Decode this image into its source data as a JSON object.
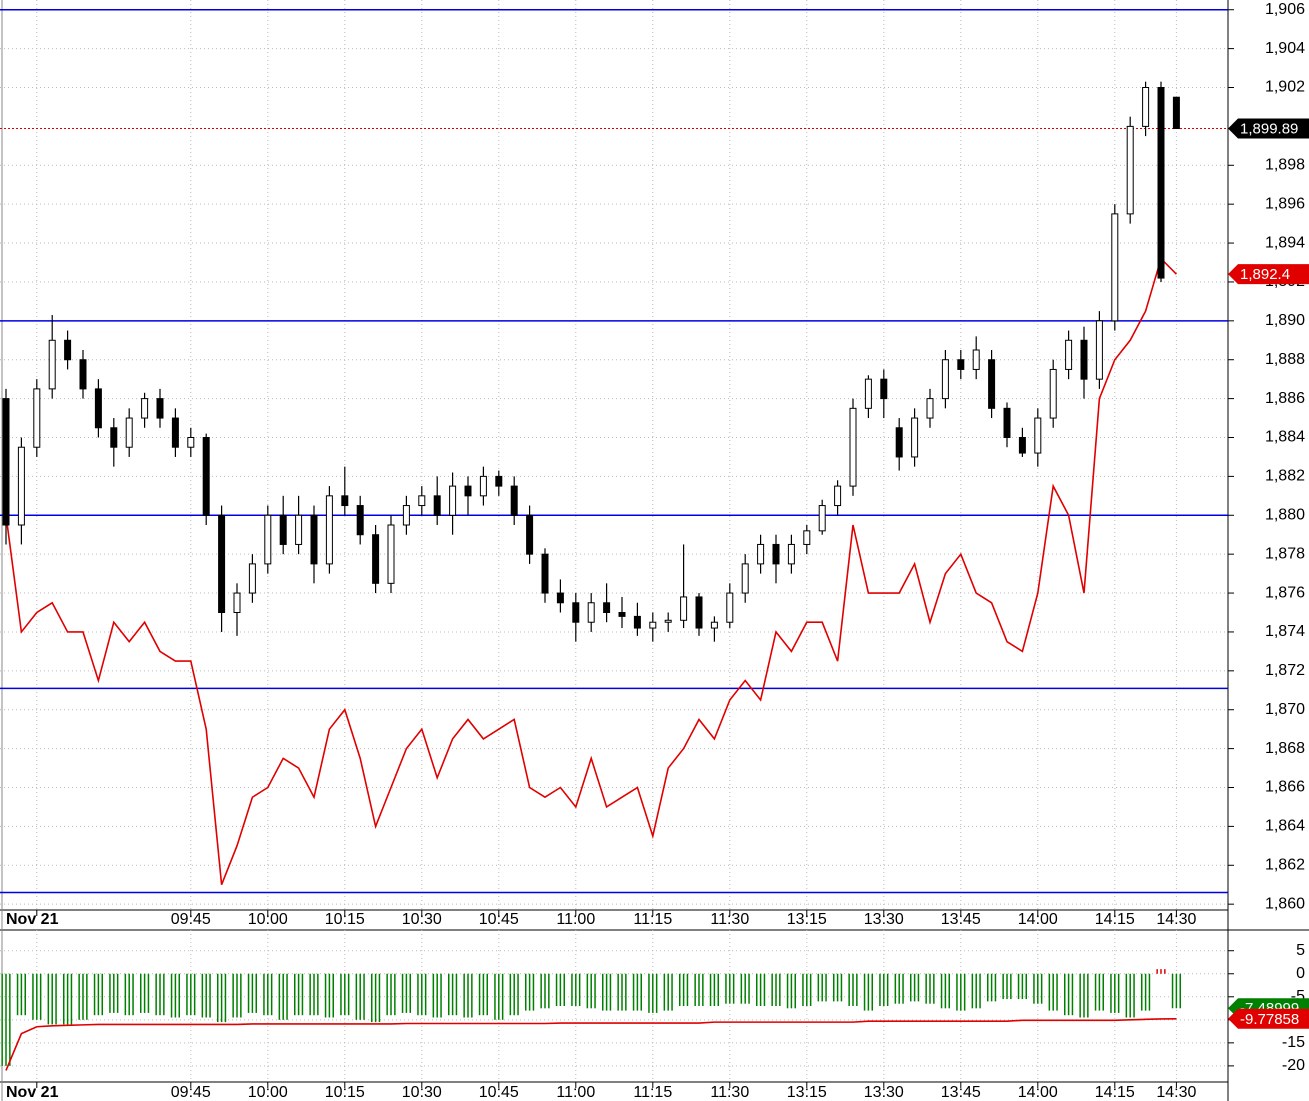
{
  "chart_data": [
    {
      "type": "candlestick",
      "categories": [
        null,
        null,
        "Nov 21",
        null,
        null,
        null,
        null,
        null,
        null,
        null,
        null,
        null,
        "09:45",
        null,
        null,
        null,
        null,
        "10:00",
        null,
        null,
        null,
        null,
        "10:15",
        null,
        null,
        null,
        null,
        "10:30",
        null,
        null,
        null,
        null,
        "10:45",
        null,
        null,
        null,
        null,
        "11:00",
        null,
        null,
        null,
        null,
        "11:15",
        null,
        null,
        null,
        null,
        "11:30",
        null,
        null,
        null,
        null,
        "13:15",
        null,
        null,
        null,
        null,
        "13:30",
        null,
        null,
        null,
        null,
        "13:45",
        null,
        null,
        null,
        null,
        "14:00",
        null,
        null,
        null,
        null,
        "14:15",
        null,
        null,
        null,
        "14:30"
      ],
      "open": [
        1886,
        1879.5,
        1883.5,
        1886.5,
        1889,
        1888,
        1886.5,
        1884.5,
        1883.5,
        1885,
        1886,
        1885,
        1883.5,
        1884,
        1880,
        1875,
        1876,
        1877.5,
        1880,
        1878.5,
        1880,
        1877.5,
        1881,
        1880.5,
        1879,
        1876.5,
        1879.5,
        1880.5,
        1881,
        1880,
        1881.5,
        1881,
        1882,
        1881.5,
        1880,
        1878,
        1876,
        1875.5,
        1874.5,
        1875.5,
        1875,
        1874.8,
        1874.2,
        1874.5,
        1874.6,
        1875.8,
        1874.2,
        1874.5,
        1876,
        1877.5,
        1878.5,
        1877.5,
        1878.5,
        1879.2,
        1880.5,
        1881.5,
        1885.5,
        1887,
        1884.5,
        1883,
        1885,
        1886,
        1888,
        1887.5,
        1888,
        1885.5,
        1884,
        1883.2,
        1885,
        1887.5,
        1889,
        1887,
        1890,
        1895.5,
        1900,
        1902,
        1901.5
      ],
      "high": [
        1886.5,
        1884,
        1887,
        1890.3,
        1889.5,
        1888.5,
        1887,
        1885,
        1885.5,
        1886.3,
        1886.5,
        1885.5,
        1884.5,
        1884.2,
        1880.5,
        1876.5,
        1878,
        1880.5,
        1881,
        1881,
        1880.5,
        1881.5,
        1882.5,
        1881,
        1879.5,
        1880,
        1881,
        1881.5,
        1882,
        1882.2,
        1882,
        1882.5,
        1882.3,
        1882,
        1880.5,
        1878.3,
        1876.7,
        1876,
        1876,
        1876.5,
        1875.8,
        1875.5,
        1875,
        1875,
        1878.5,
        1876,
        1874.8,
        1876.5,
        1878,
        1879,
        1879,
        1879,
        1879.5,
        1880.8,
        1881.8,
        1886,
        1887.2,
        1887.5,
        1885,
        1885.5,
        1886.5,
        1888.5,
        1888.5,
        1889.2,
        1888.5,
        1885.8,
        1884.5,
        1885.5,
        1888,
        1889.5,
        1889.7,
        1890.5,
        1896,
        1900.5,
        1902.3,
        1902.3,
        1901.5
      ],
      "low": [
        1878.5,
        1878.5,
        1883,
        1886,
        1887.5,
        1886,
        1884,
        1882.5,
        1883,
        1884.5,
        1884.5,
        1883,
        1883,
        1879.5,
        1874,
        1873.8,
        1875.5,
        1877,
        1878,
        1878,
        1876.5,
        1877,
        1880,
        1878.5,
        1876,
        1876,
        1879,
        1880,
        1879.5,
        1879,
        1880,
        1880.5,
        1881,
        1879.5,
        1877.5,
        1875.5,
        1875,
        1873.5,
        1874,
        1874.5,
        1874.2,
        1873.8,
        1873.5,
        1874,
        1874.2,
        1873.8,
        1873.5,
        1874.2,
        1875.5,
        1877,
        1876.5,
        1877,
        1878,
        1879,
        1880,
        1881,
        1885,
        1885,
        1882.3,
        1882.5,
        1884.5,
        1885.5,
        1887,
        1887,
        1885,
        1883.5,
        1883,
        1882.5,
        1884.5,
        1887,
        1886,
        1886.5,
        1889.5,
        1895,
        1899.5,
        1892,
        1899.89
      ],
      "close": [
        1879.5,
        1883.5,
        1886.5,
        1889,
        1888,
        1886.5,
        1884.5,
        1883.5,
        1885,
        1886,
        1885,
        1883.5,
        1884,
        1880,
        1875,
        1876,
        1877.5,
        1880,
        1878.5,
        1880,
        1877.5,
        1881,
        1880.5,
        1879,
        1876.5,
        1879.5,
        1880.5,
        1881,
        1880,
        1881.5,
        1881,
        1882,
        1881.5,
        1880,
        1878,
        1876,
        1875.5,
        1874.5,
        1875.5,
        1875,
        1874.8,
        1874.2,
        1874.5,
        1874.6,
        1875.8,
        1874.2,
        1874.5,
        1876,
        1877.5,
        1878.5,
        1877.5,
        1878.5,
        1879.2,
        1880.5,
        1881.5,
        1885.5,
        1887,
        1886,
        1883,
        1885,
        1886,
        1888,
        1887.5,
        1888.5,
        1885.5,
        1884,
        1883.2,
        1885,
        1887.5,
        1889,
        1887,
        1890,
        1895.5,
        1900,
        1902,
        1892.2,
        1899.89
      ],
      "line": {
        "color": "#e00000",
        "values": [
          1880,
          1874,
          1875,
          1875.5,
          1874,
          1874,
          1871.5,
          1874.5,
          1873.5,
          1874.5,
          1873,
          1872.5,
          1872.5,
          1869,
          1861,
          1863,
          1865.5,
          1866,
          1867.5,
          1867,
          1865.5,
          1869,
          1870,
          1867.5,
          1864,
          1866,
          1868,
          1869,
          1866.5,
          1868.5,
          1869.5,
          1868.5,
          1869,
          1869.5,
          1866,
          1865.5,
          1866,
          1865,
          1867.5,
          1865,
          1865.5,
          1866,
          1863.5,
          1867,
          1868,
          1869.5,
          1868.5,
          1870.5,
          1871.5,
          1870.5,
          1874,
          1873,
          1874.5,
          1874.5,
          1872.5,
          1879.5,
          1876,
          1876,
          1876,
          1877.5,
          1874.5,
          1877,
          1878,
          1876,
          1875.5,
          1873.5,
          1873,
          1876,
          1881.5,
          1880,
          1876,
          1886,
          1888,
          1889,
          1890.5,
          1893.2,
          1892.4
        ]
      },
      "line_tag": {
        "value": 1892.4,
        "label": "1,892.4"
      },
      "price_tag": {
        "value": 1899.89,
        "label": "1,899.89"
      },
      "levels": [
        1906,
        1890,
        1880,
        1871.1,
        1860.6
      ],
      "level_color": "#0000e0",
      "ylim": [
        1859.7,
        1906.5
      ],
      "yticks": [
        {
          "value": 1860,
          "label": "1,860"
        },
        {
          "value": 1862,
          "label": "1,862"
        },
        {
          "value": 1864,
          "label": "1,864"
        },
        {
          "value": 1866,
          "label": "1,866"
        },
        {
          "value": 1868,
          "label": "1,868"
        },
        {
          "value": 1870,
          "label": "1,870"
        },
        {
          "value": 1872,
          "label": "1,872"
        },
        {
          "value": 1874,
          "label": "1,874"
        },
        {
          "value": 1876,
          "label": "1,876"
        },
        {
          "value": 1878,
          "label": "1,878"
        },
        {
          "value": 1880,
          "label": "1,880"
        },
        {
          "value": 1882,
          "label": "1,882"
        },
        {
          "value": 1884,
          "label": "1,884"
        },
        {
          "value": 1886,
          "label": "1,886"
        },
        {
          "value": 1888,
          "label": "1,888"
        },
        {
          "value": 1890,
          "label": "1,890"
        },
        {
          "value": 1892,
          "label": "1,892"
        },
        {
          "value": 1894,
          "label": "1,894"
        },
        {
          "value": 1896,
          "label": "1,896"
        },
        {
          "value": 1898,
          "label": "1,898"
        },
        {
          "value": 1902,
          "label": "1,902"
        },
        {
          "value": 1904,
          "label": "1,904"
        },
        {
          "value": 1906,
          "label": "1,906"
        }
      ],
      "grid": true
    },
    {
      "type": "histogram-oscillator",
      "categories": [
        null,
        null,
        "Nov 21",
        null,
        null,
        null,
        null,
        null,
        null,
        null,
        null,
        null,
        "09:45",
        null,
        null,
        null,
        null,
        "10:00",
        null,
        null,
        null,
        null,
        "10:15",
        null,
        null,
        null,
        null,
        "10:30",
        null,
        null,
        null,
        null,
        "10:45",
        null,
        null,
        null,
        null,
        "11:00",
        null,
        null,
        null,
        null,
        "11:15",
        null,
        null,
        null,
        null,
        "11:30",
        null,
        null,
        null,
        null,
        "13:15",
        null,
        null,
        null,
        null,
        "13:30",
        null,
        null,
        null,
        null,
        "13:45",
        null,
        null,
        null,
        null,
        "14:00",
        null,
        null,
        null,
        null,
        "14:15",
        null,
        null,
        null,
        "14:30"
      ],
      "values": [
        -20,
        -9,
        -10,
        -11,
        -11,
        -10,
        -9,
        -8.5,
        -9,
        -8.5,
        -9,
        -9.5,
        -9,
        -9.5,
        -10.5,
        -9.5,
        -8.5,
        -9,
        -10,
        -9,
        -9,
        -9.5,
        -9,
        -10,
        -10.5,
        -9,
        -8.5,
        -9,
        -9.5,
        -9,
        -9.5,
        -9,
        -10,
        -9,
        -8,
        -7.5,
        -7,
        -7,
        -7.5,
        -8,
        -8,
        -8,
        -8.5,
        -8,
        -7,
        -7,
        -7,
        -6.5,
        -6.5,
        -7,
        -7,
        -7.5,
        -7,
        -6,
        -6,
        -7,
        -8,
        -7,
        -6.5,
        -6,
        -6.5,
        -7.5,
        -8,
        -7.5,
        -6,
        -5.5,
        -5.5,
        -6.5,
        -8,
        -9,
        -9.5,
        -8,
        -8.5,
        -9.5,
        -8,
        1,
        -7.48999
      ],
      "up_color": "#e00000",
      "down_color": "#008000",
      "signal": {
        "color": "#e00000",
        "values": [
          -21,
          -13,
          -11.5,
          -11.3,
          -11.2,
          -11.1,
          -11,
          -11,
          -11,
          -11,
          -11,
          -11,
          -11,
          -11,
          -11,
          -11,
          -10.9,
          -10.9,
          -10.9,
          -10.9,
          -10.9,
          -10.9,
          -10.9,
          -10.9,
          -10.9,
          -10.9,
          -10.8,
          -10.8,
          -10.8,
          -10.8,
          -10.8,
          -10.8,
          -10.8,
          -10.8,
          -10.8,
          -10.8,
          -10.7,
          -10.7,
          -10.7,
          -10.7,
          -10.7,
          -10.7,
          -10.7,
          -10.7,
          -10.7,
          -10.7,
          -10.5,
          -10.5,
          -10.5,
          -10.5,
          -10.5,
          -10.5,
          -10.5,
          -10.5,
          -10.5,
          -10.5,
          -10.3,
          -10.3,
          -10.3,
          -10.3,
          -10.3,
          -10.3,
          -10.3,
          -10.3,
          -10.3,
          -10.3,
          -10.1,
          -10.1,
          -10.1,
          -10.1,
          -10.1,
          -10.1,
          -10.1,
          -10,
          -9.9,
          -9.8,
          -9.77858
        ]
      },
      "ylim": [
        -23.5,
        9.5
      ],
      "yticks": [
        5,
        0,
        -5,
        -10,
        -15,
        -20
      ],
      "grid": true
    }
  ]
}
